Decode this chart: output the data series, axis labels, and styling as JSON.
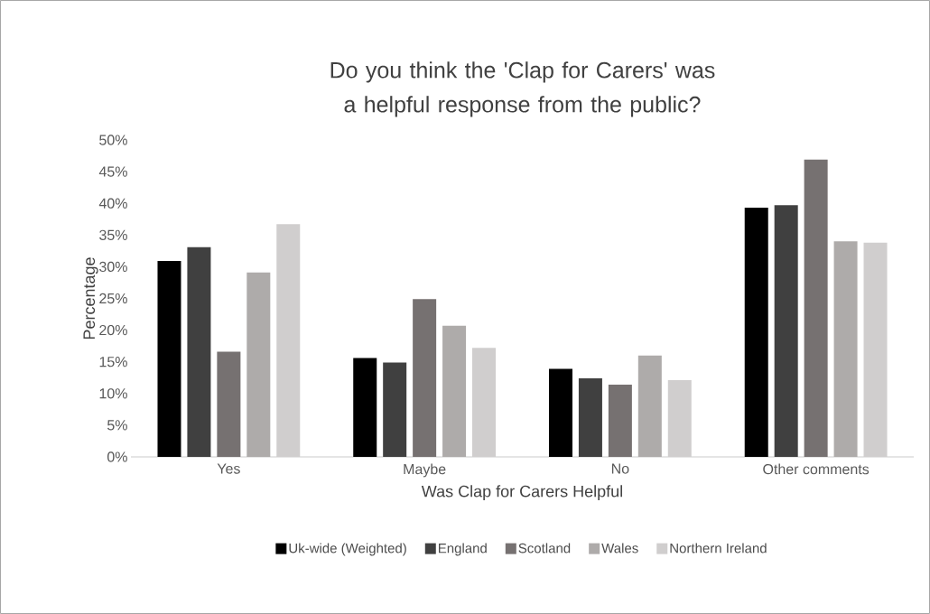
{
  "chart_data": {
    "type": "bar",
    "title": "Do you think the 'Clap for Carers' was a helpful response from the public?",
    "xlabel": "Was Clap for Carers Helpful",
    "ylabel": "Percentage",
    "categories": [
      "Yes",
      "Maybe",
      "No",
      "Other comments"
    ],
    "series": [
      {
        "name": "Uk-wide (Weighted)",
        "color": "#000000",
        "values": [
          30.9,
          15.6,
          13.9,
          39.3
        ]
      },
      {
        "name": "England",
        "color": "#404040",
        "values": [
          33.1,
          14.9,
          12.4,
          39.7
        ]
      },
      {
        "name": "Scotland",
        "color": "#767171",
        "values": [
          16.6,
          24.9,
          11.4,
          46.9
        ]
      },
      {
        "name": "Wales",
        "color": "#aeabaa",
        "values": [
          29.1,
          20.7,
          16.0,
          34.0
        ]
      },
      {
        "name": "Northern Ireland",
        "color": "#d0cece",
        "values": [
          36.7,
          17.2,
          12.1,
          33.8
        ]
      }
    ],
    "ylim": [
      0,
      50
    ],
    "yticks": [
      {
        "value": 0,
        "label": "0%"
      },
      {
        "value": 5,
        "label": "5%"
      },
      {
        "value": 10,
        "label": "10%"
      },
      {
        "value": 15,
        "label": "15%"
      },
      {
        "value": 20,
        "label": "20%"
      },
      {
        "value": 25,
        "label": "25%"
      },
      {
        "value": 30,
        "label": "30%"
      },
      {
        "value": 35,
        "label": "35%"
      },
      {
        "value": 40,
        "label": "40%"
      },
      {
        "value": 45,
        "label": "45%"
      },
      {
        "value": 50,
        "label": "50%"
      }
    ],
    "grid": false,
    "legend": "bottom"
  }
}
